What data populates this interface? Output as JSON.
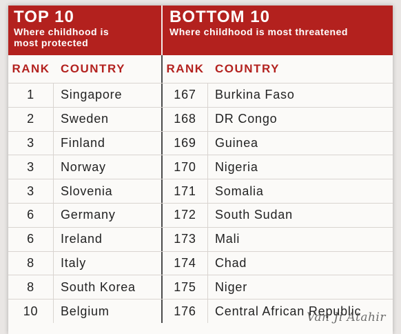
{
  "header": {
    "left_title": "TOP 10",
    "left_subtitle_line1": "Where childhood is",
    "left_subtitle_line2": "most protected",
    "right_title": "BOTTOM 10",
    "right_subtitle": "Where childhood is most threatened"
  },
  "columns": {
    "rank": "RANK",
    "country": "COUNTRY"
  },
  "colors": {
    "accent": "#b3211e",
    "text": "#222222",
    "rule": "#d9d4d0"
  },
  "top10": [
    {
      "rank": "1",
      "country": "Singapore"
    },
    {
      "rank": "2",
      "country": "Sweden"
    },
    {
      "rank": "3",
      "country": "Finland"
    },
    {
      "rank": "3",
      "country": "Norway"
    },
    {
      "rank": "3",
      "country": "Slovenia"
    },
    {
      "rank": "6",
      "country": "Germany"
    },
    {
      "rank": "6",
      "country": "Ireland"
    },
    {
      "rank": "8",
      "country": "Italy"
    },
    {
      "rank": "8",
      "country": "South Korea"
    },
    {
      "rank": "10",
      "country": "Belgium"
    }
  ],
  "bottom10": [
    {
      "rank": "167",
      "country": "Burkina Faso"
    },
    {
      "rank": "168",
      "country": "DR Congo"
    },
    {
      "rank": "169",
      "country": "Guinea"
    },
    {
      "rank": "170",
      "country": "Nigeria"
    },
    {
      "rank": "171",
      "country": "Somalia"
    },
    {
      "rank": "172",
      "country": "South Sudan"
    },
    {
      "rank": "173",
      "country": "Mali"
    },
    {
      "rank": "174",
      "country": "Chad"
    },
    {
      "rank": "175",
      "country": "Niger"
    },
    {
      "rank": "176",
      "country": "Central African Republic"
    }
  ],
  "watermark": "Van Ji Atahir"
}
